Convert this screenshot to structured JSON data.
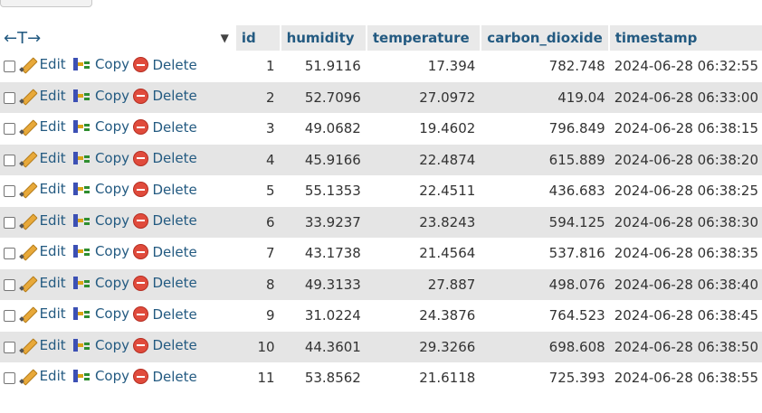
{
  "header": {
    "arrows": "←T→",
    "sort_indicator": "▼",
    "columns": [
      "id",
      "humidity",
      "temperature",
      "carbon_dioxide",
      "timestamp"
    ]
  },
  "actions": {
    "edit": "Edit",
    "copy": "Copy",
    "delete": "Delete"
  },
  "rows": [
    {
      "id": "1",
      "humidity": "51.9116",
      "temperature": "17.394",
      "carbon_dioxide": "782.748",
      "timestamp": "2024-06-28 06:32:55"
    },
    {
      "id": "2",
      "humidity": "52.7096",
      "temperature": "27.0972",
      "carbon_dioxide": "419.04",
      "timestamp": "2024-06-28 06:33:00"
    },
    {
      "id": "3",
      "humidity": "49.0682",
      "temperature": "19.4602",
      "carbon_dioxide": "796.849",
      "timestamp": "2024-06-28 06:38:15"
    },
    {
      "id": "4",
      "humidity": "45.9166",
      "temperature": "22.4874",
      "carbon_dioxide": "615.889",
      "timestamp": "2024-06-28 06:38:20"
    },
    {
      "id": "5",
      "humidity": "55.1353",
      "temperature": "22.4511",
      "carbon_dioxide": "436.683",
      "timestamp": "2024-06-28 06:38:25"
    },
    {
      "id": "6",
      "humidity": "33.9237",
      "temperature": "23.8243",
      "carbon_dioxide": "594.125",
      "timestamp": "2024-06-28 06:38:30"
    },
    {
      "id": "7",
      "humidity": "43.1738",
      "temperature": "21.4564",
      "carbon_dioxide": "537.816",
      "timestamp": "2024-06-28 06:38:35"
    },
    {
      "id": "8",
      "humidity": "49.3133",
      "temperature": "27.887",
      "carbon_dioxide": "498.076",
      "timestamp": "2024-06-28 06:38:40"
    },
    {
      "id": "9",
      "humidity": "31.0224",
      "temperature": "24.3876",
      "carbon_dioxide": "764.523",
      "timestamp": "2024-06-28 06:38:45"
    },
    {
      "id": "10",
      "humidity": "44.3601",
      "temperature": "29.3266",
      "carbon_dioxide": "698.608",
      "timestamp": "2024-06-28 06:38:50"
    },
    {
      "id": "11",
      "humidity": "53.8562",
      "temperature": "21.6118",
      "carbon_dioxide": "725.393",
      "timestamp": "2024-06-28 06:38:55"
    }
  ]
}
